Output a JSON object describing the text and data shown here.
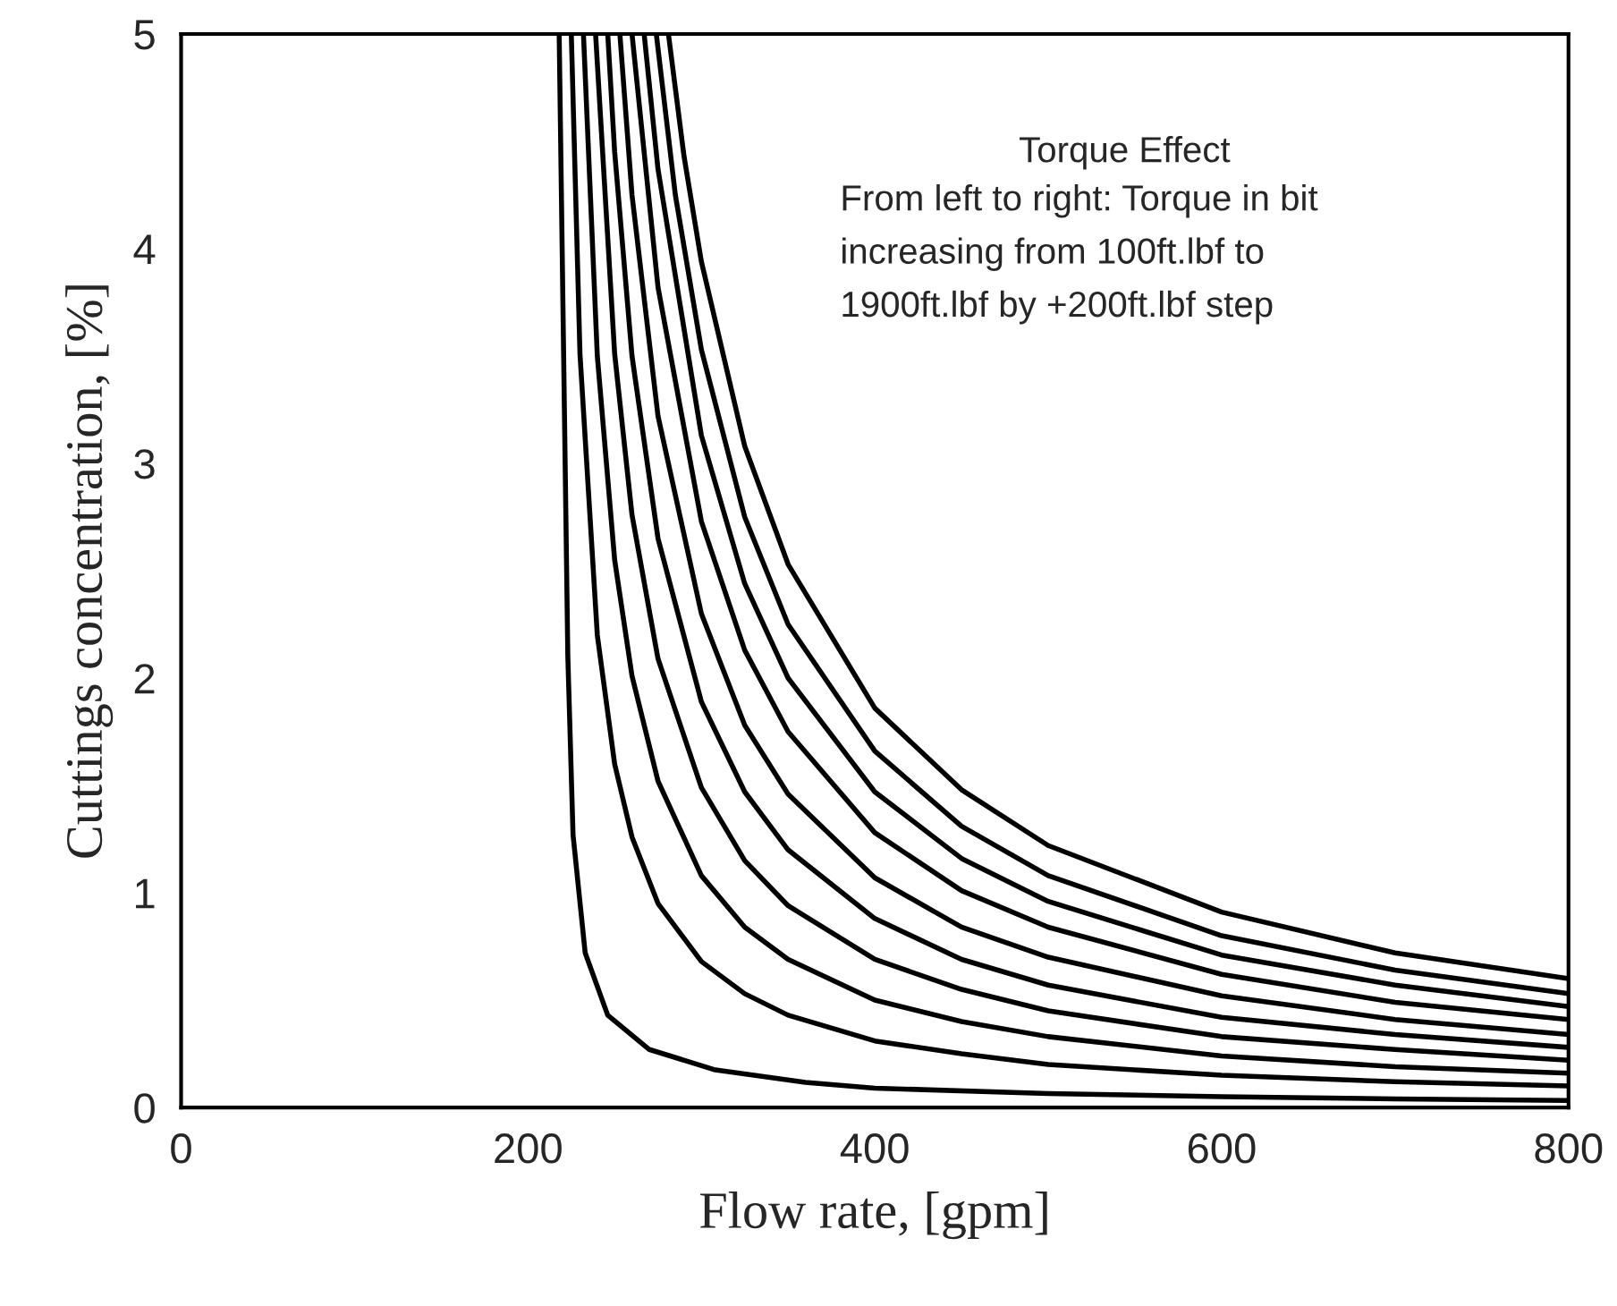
{
  "chart_data": {
    "type": "line",
    "xlabel": "Flow rate, [gpm]",
    "ylabel": "Cuttings concentration, [%]",
    "xlim": [
      0,
      800
    ],
    "xticks": [
      0,
      200,
      400,
      600,
      800
    ],
    "ylim": [
      0,
      5
    ],
    "yticks": [
      0,
      1,
      2,
      3,
      4,
      5
    ],
    "grid": false,
    "legend": false,
    "marker": "none",
    "line_style": "solid",
    "annotations": [
      "Torque Effect",
      "From left to right: Torque in bit\nincreasing from 100ft.lbf to\n1900ft.lbf by +200ft.lbf step"
    ],
    "series": [
      {
        "color": "#000000",
        "x": [
          218,
          223,
          226,
          233,
          246,
          270,
          308,
          360,
          400,
          500,
          600,
          700,
          800
        ],
        "values": [
          5,
          2.1,
          1.27,
          0.72,
          0.43,
          0.27,
          0.175,
          0.117,
          0.09,
          0.065,
          0.05,
          0.04,
          0.033
        ]
      },
      {
        "color": "#000000",
        "x": [
          225,
          230,
          240,
          250,
          260,
          275,
          300,
          325,
          350,
          400,
          450,
          500,
          600,
          700,
          800
        ],
        "values": [
          5,
          3.51,
          2.2,
          1.6,
          1.26,
          0.95,
          0.68,
          0.53,
          0.43,
          0.31,
          0.25,
          0.2,
          0.15,
          0.12,
          0.1
        ]
      },
      {
        "color": "#000000",
        "x": [
          232,
          240,
          250,
          260,
          275,
          300,
          325,
          350,
          400,
          450,
          500,
          600,
          700,
          800
        ],
        "values": [
          5,
          3.5,
          2.55,
          2.01,
          1.52,
          1.08,
          0.84,
          0.69,
          0.5,
          0.4,
          0.33,
          0.24,
          0.19,
          0.16
        ]
      },
      {
        "color": "#000000",
        "x": [
          239,
          250,
          260,
          275,
          300,
          325,
          350,
          400,
          450,
          500,
          600,
          700,
          800
        ],
        "values": [
          5,
          3.51,
          2.76,
          2.09,
          1.49,
          1.15,
          0.94,
          0.69,
          0.55,
          0.45,
          0.33,
          0.27,
          0.22
        ]
      },
      {
        "color": "#000000",
        "x": [
          246,
          250,
          260,
          275,
          300,
          325,
          350,
          400,
          450,
          500,
          600,
          700,
          800
        ],
        "values": [
          5,
          4.45,
          3.5,
          2.65,
          1.89,
          1.47,
          1.2,
          0.88,
          0.69,
          0.57,
          0.42,
          0.34,
          0.28
        ]
      },
      {
        "color": "#000000",
        "x": [
          253,
          260,
          275,
          300,
          325,
          350,
          400,
          450,
          500,
          600,
          700,
          800
        ],
        "values": [
          5,
          4.25,
          3.22,
          2.3,
          1.78,
          1.46,
          1.07,
          0.84,
          0.7,
          0.52,
          0.41,
          0.34
        ]
      },
      {
        "color": "#000000",
        "x": [
          260,
          275,
          300,
          325,
          350,
          400,
          450,
          500,
          600,
          700,
          800
        ],
        "values": [
          5,
          3.82,
          2.73,
          2.13,
          1.75,
          1.28,
          1.01,
          0.84,
          0.62,
          0.49,
          0.41
        ]
      },
      {
        "color": "#000000",
        "x": [
          267,
          275,
          300,
          325,
          350,
          400,
          450,
          500,
          600,
          700,
          800
        ],
        "values": [
          5,
          4.37,
          3.13,
          2.44,
          2.0,
          1.47,
          1.16,
          0.96,
          0.71,
          0.57,
          0.47
        ]
      },
      {
        "color": "#000000",
        "x": [
          274,
          285,
          300,
          325,
          350,
          400,
          450,
          500,
          600,
          700,
          800
        ],
        "values": [
          5,
          4.25,
          3.53,
          2.75,
          2.25,
          1.66,
          1.31,
          1.08,
          0.8,
          0.64,
          0.53
        ]
      },
      {
        "color": "#000000",
        "x": [
          281,
          290,
          300,
          325,
          350,
          400,
          450,
          500,
          600,
          700,
          800
        ],
        "values": [
          5,
          4.43,
          3.94,
          3.08,
          2.53,
          1.86,
          1.48,
          1.22,
          0.91,
          0.72,
          0.6
        ]
      }
    ]
  }
}
